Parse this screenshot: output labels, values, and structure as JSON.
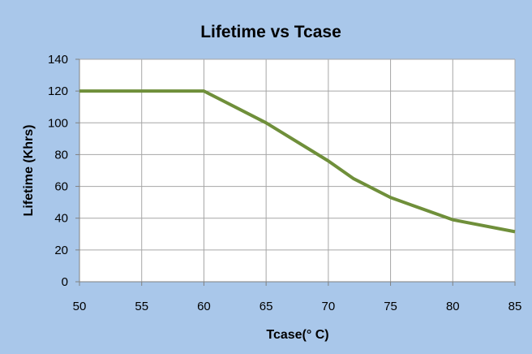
{
  "chart_data": {
    "type": "line",
    "title": "Lifetime vs Tcase",
    "xlabel": "Tcase(° C)",
    "ylabel": "Lifetime (Khrs)",
    "xlim": [
      50,
      85
    ],
    "ylim": [
      0,
      140
    ],
    "x_ticks": [
      50,
      55,
      60,
      65,
      70,
      75,
      80,
      85
    ],
    "y_ticks": [
      0,
      20,
      40,
      60,
      80,
      100,
      120,
      140
    ],
    "grid": true,
    "legend": "none",
    "series": [
      {
        "color": "#6F8F3A",
        "x": [
          50,
          55,
          60,
          65,
          70,
          72,
          75,
          80,
          85
        ],
        "y": [
          120,
          120,
          120,
          100,
          76,
          65,
          53,
          39,
          31.5
        ]
      }
    ]
  },
  "colors": {
    "background": "#A9C7EA",
    "plot_area": "#FFFFFF",
    "grid": "#A6A6A6",
    "axis": "#808080",
    "series": "#6F8F3A"
  }
}
